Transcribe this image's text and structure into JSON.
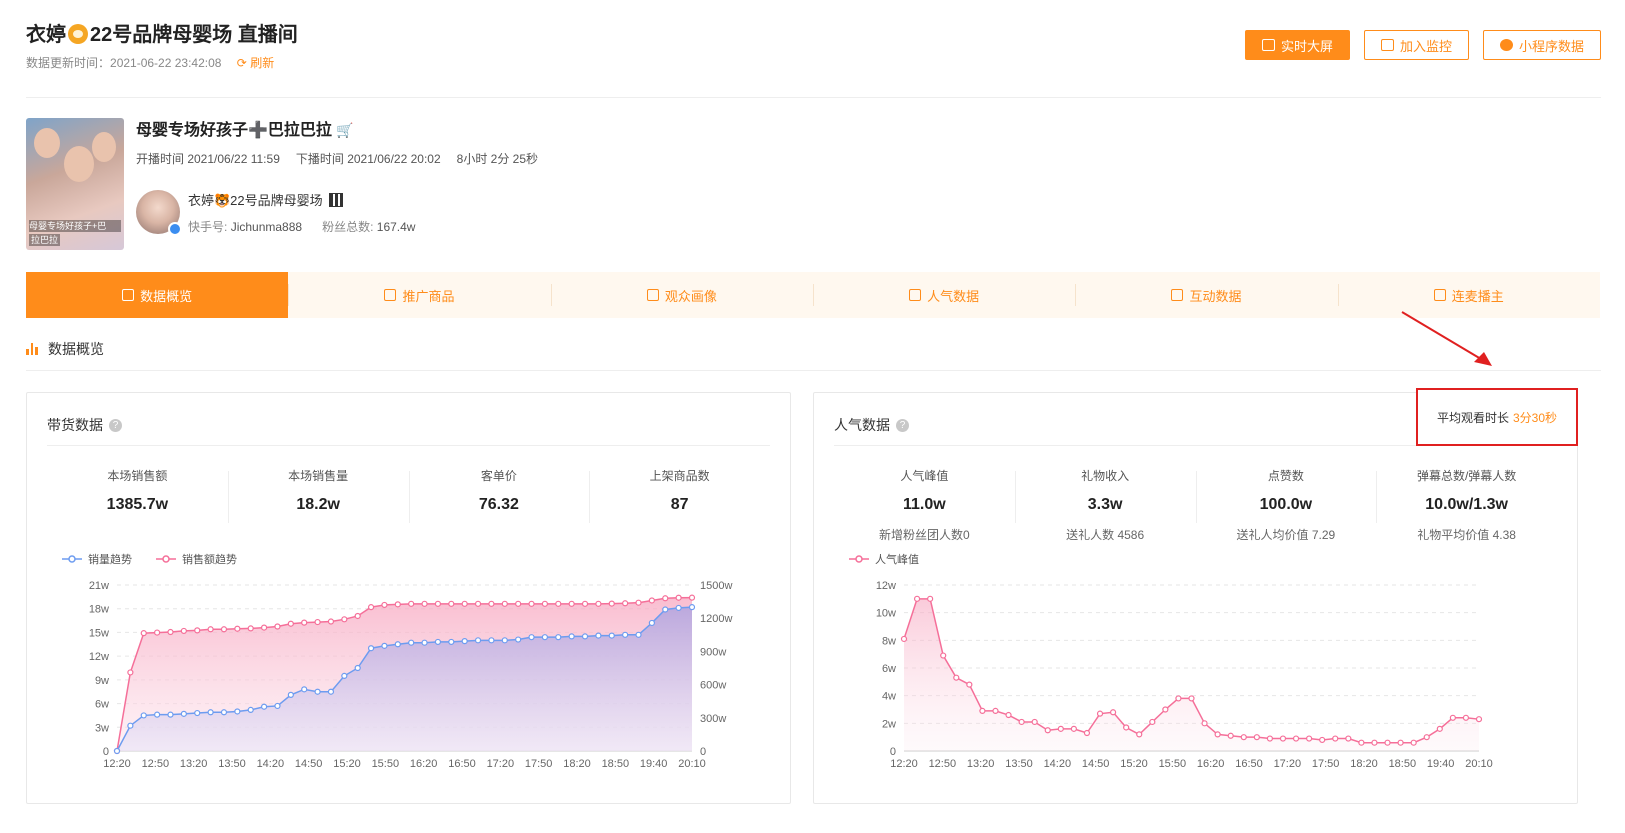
{
  "header": {
    "title_pre": "衣婷",
    "title_post": "22号品牌母婴场 直播间",
    "update_label": "数据更新时间：",
    "update_time": "2021-06-22 23:42:08",
    "refresh_label": "刷新",
    "buttons": [
      {
        "label": "实时大屏"
      },
      {
        "label": "加入监控"
      },
      {
        "label": "小程序数据"
      }
    ]
  },
  "live": {
    "cover_caption": "母婴专场好孩子+巴",
    "cover_caption2": "拉巴拉",
    "title": "母婴专场好孩子➕巴拉巴拉",
    "start": "开播时间 2021/06/22 11:59",
    "end": "下播时间 2021/06/22 20:02",
    "duration": "8小时 2分 25秒",
    "anchor_name": "衣婷🐯22号品牌母婴场",
    "kuaishou_label": "快手号:",
    "kuaishou_id": "Jichunma888",
    "fans_label": "粉丝总数:",
    "fans": "167.4w"
  },
  "tabs": [
    {
      "label": "数据概览",
      "icon": "bar-chart-icon"
    },
    {
      "label": "推广商品",
      "icon": "bag-icon"
    },
    {
      "label": "观众画像",
      "icon": "scan-icon"
    },
    {
      "label": "人气数据",
      "icon": "fire-icon"
    },
    {
      "label": "互动数据",
      "icon": "pulse-icon"
    },
    {
      "label": "连麦播主",
      "icon": "link-icon"
    }
  ],
  "section_title": "数据概览",
  "sales_card": {
    "title": "带货数据",
    "metrics": [
      {
        "label": "本场销售额",
        "value": "1385.7w"
      },
      {
        "label": "本场销售量",
        "value": "18.2w"
      },
      {
        "label": "客单价",
        "value": "76.32"
      },
      {
        "label": "上架商品数",
        "value": "87"
      }
    ]
  },
  "popularity_card": {
    "title": "人气数据",
    "avg_watch_label": "平均观看时长",
    "avg_watch_value": "3分30秒",
    "metrics": [
      {
        "label": "人气峰值",
        "value": "11.0w",
        "sub": "新增粉丝团人数0"
      },
      {
        "label": "礼物收入",
        "value": "3.3w",
        "sub": "送礼人数 4586"
      },
      {
        "label": "点赞数",
        "value": "100.0w",
        "sub": "送礼人均价值 7.29"
      },
      {
        "label": "弹幕总数/弹幕人数",
        "value": "10.0w/1.3w",
        "sub": "礼物平均价值 4.38"
      }
    ]
  },
  "colors": {
    "accent": "#ff8c1a",
    "blue": "#6d9cf0",
    "pink": "#f56f99",
    "alert": "#e02020"
  },
  "chart_data": [
    {
      "type": "line",
      "x_ticks": [
        "12:20",
        "12:50",
        "13:20",
        "13:50",
        "14:20",
        "14:50",
        "15:20",
        "15:50",
        "16:20",
        "16:50",
        "17:20",
        "17:50",
        "18:20",
        "18:50",
        "19:40",
        "20:10"
      ],
      "y_left_ticks": [
        "0",
        "3w",
        "6w",
        "9w",
        "12w",
        "15w",
        "18w",
        "21w"
      ],
      "y_right_ticks": [
        "0",
        "300w",
        "600w",
        "900w",
        "1200w",
        "1500w"
      ],
      "ylim_left": [
        0,
        21
      ],
      "ylim_right": [
        0,
        1500
      ],
      "legend": [
        "销量趋势",
        "销售额趋势"
      ],
      "series": [
        {
          "name": "销量趋势",
          "axis": "left",
          "values": [
            0,
            3.2,
            4.5,
            4.6,
            4.6,
            4.7,
            4.8,
            4.9,
            4.9,
            5.0,
            5.2,
            5.6,
            5.7,
            7.1,
            7.8,
            7.5,
            7.5,
            9.5,
            10.5,
            13.0,
            13.3,
            13.5,
            13.7,
            13.7,
            13.8,
            13.8,
            13.9,
            14.0,
            14.0,
            14.0,
            14.1,
            14.4,
            14.4,
            14.4,
            14.5,
            14.5,
            14.6,
            14.6,
            14.7,
            14.7,
            16.2,
            17.9,
            18.1,
            18.2
          ]
        },
        {
          "name": "销售额趋势",
          "axis": "right",
          "values": [
            0,
            710,
            1065,
            1070,
            1075,
            1085,
            1090,
            1100,
            1100,
            1105,
            1108,
            1115,
            1125,
            1150,
            1160,
            1165,
            1170,
            1190,
            1220,
            1300,
            1320,
            1325,
            1330,
            1330,
            1330,
            1330,
            1330,
            1330,
            1330,
            1330,
            1330,
            1330,
            1330,
            1330,
            1330,
            1330,
            1330,
            1332,
            1335,
            1340,
            1360,
            1380,
            1385,
            1385.7
          ]
        }
      ]
    },
    {
      "type": "area",
      "x_ticks": [
        "12:20",
        "12:50",
        "13:20",
        "13:50",
        "14:20",
        "14:50",
        "15:20",
        "15:50",
        "16:20",
        "16:50",
        "17:20",
        "17:50",
        "18:20",
        "18:50",
        "19:40",
        "20:10"
      ],
      "y_ticks": [
        "0",
        "2w",
        "4w",
        "6w",
        "8w",
        "10w",
        "12w"
      ],
      "ylim": [
        0,
        12
      ],
      "legend": [
        "人气峰值"
      ],
      "series": [
        {
          "name": "人气峰值",
          "values": [
            8.1,
            11.0,
            11.0,
            6.9,
            5.3,
            4.8,
            2.9,
            2.9,
            2.6,
            2.1,
            2.1,
            1.5,
            1.6,
            1.6,
            1.3,
            2.7,
            2.8,
            1.7,
            1.2,
            2.1,
            3.0,
            3.8,
            3.8,
            2.0,
            1.2,
            1.1,
            1.0,
            1.0,
            0.9,
            0.9,
            0.9,
            0.9,
            0.8,
            0.9,
            0.9,
            0.6,
            0.6,
            0.6,
            0.6,
            0.6,
            1.0,
            1.6,
            2.4,
            2.4,
            2.3
          ]
        }
      ]
    }
  ]
}
